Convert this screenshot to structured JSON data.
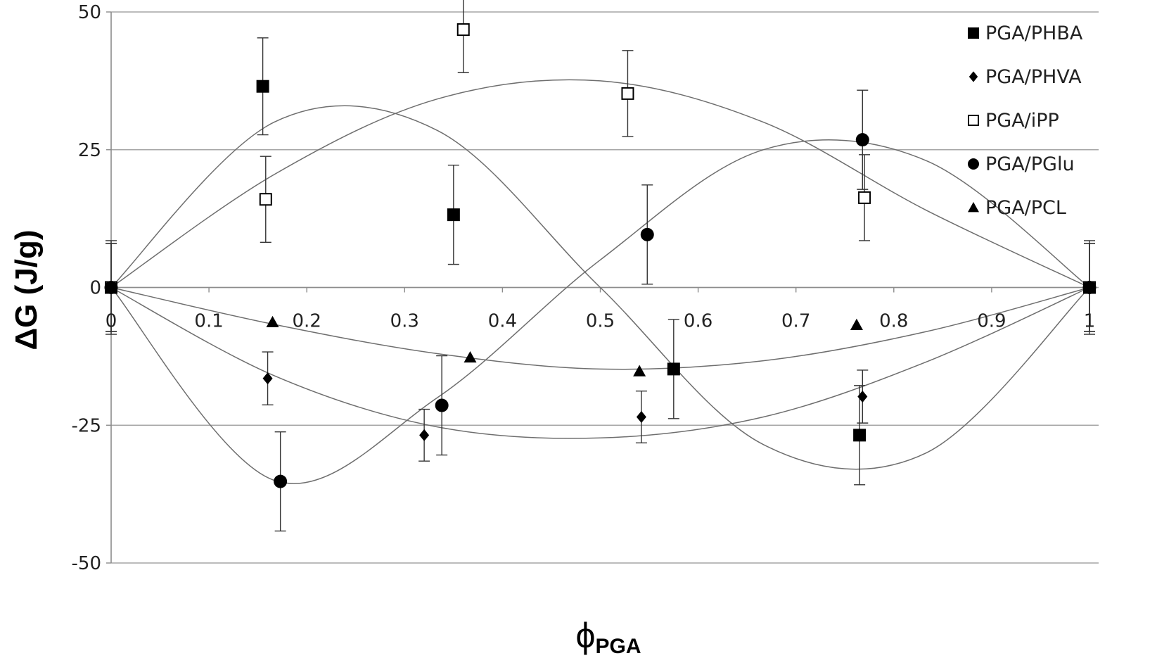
{
  "chart_data": {
    "type": "scatter",
    "xlabel": "ϕ",
    "xlabel_subscript": "PGA",
    "ylabel": "ΔG (J/g)",
    "xlim": [
      0,
      1
    ],
    "ylim": [
      -50,
      50
    ],
    "x_ticks": [
      "0",
      "0.1",
      "0.2",
      "0.3",
      "0.4",
      "0.5",
      "0.6",
      "0.7",
      "0.8",
      "0.9",
      "1"
    ],
    "y_ticks": [
      "50",
      "25",
      "0",
      "-25",
      "-50"
    ],
    "grid": "horizontal",
    "legend_position": "top-right",
    "series": [
      {
        "name": "PGA/PHBA",
        "marker": "filled-square",
        "points": [
          {
            "x": 0,
            "y": 0,
            "err": 8.5
          },
          {
            "x": 0.155,
            "y": 36.5,
            "err": 8.8
          },
          {
            "x": 0.35,
            "y": 13.2,
            "err": 9
          },
          {
            "x": 0.575,
            "y": -14.8,
            "err": 9
          },
          {
            "x": 0.765,
            "y": -26.8,
            "err": 9
          },
          {
            "x": 1,
            "y": 0,
            "err": 8.5
          }
        ],
        "fit": [
          0,
          30,
          28.5,
          0,
          -28.5,
          -30,
          0
        ]
      },
      {
        "name": "PGA/PHVA",
        "marker": "filled-diamond",
        "points": [
          {
            "x": 0,
            "y": 0,
            "err": 8
          },
          {
            "x": 0.16,
            "y": -16.5,
            "err": 4.8
          },
          {
            "x": 0.32,
            "y": -26.8,
            "err": 4.7
          },
          {
            "x": 0.542,
            "y": -23.5,
            "err": 4.7
          },
          {
            "x": 0.768,
            "y": -19.8,
            "err": 4.8
          },
          {
            "x": 1,
            "y": 0,
            "err": 8
          }
        ],
        "fit": [
          0,
          -16,
          -25.3,
          -27.3,
          -23.5,
          -13.5,
          0
        ]
      },
      {
        "name": "PGA/iPP",
        "marker": "open-square",
        "points": [
          {
            "x": 0,
            "y": 0,
            "err": 8
          },
          {
            "x": 0.158,
            "y": 16,
            "err": 7.8
          },
          {
            "x": 0.36,
            "y": 46.8,
            "err": 7.8
          },
          {
            "x": 0.528,
            "y": 35.2,
            "err": 7.8
          },
          {
            "x": 0.77,
            "y": 16.3,
            "err": 7.8
          },
          {
            "x": 1,
            "y": 0,
            "err": 8
          }
        ],
        "fit": [
          0,
          20.5,
          34.2,
          37.5,
          30,
          14,
          0
        ]
      },
      {
        "name": "PGA/PGlu",
        "marker": "filled-circle",
        "points": [
          {
            "x": 0,
            "y": 0,
            "err": 8
          },
          {
            "x": 0.173,
            "y": -35.2,
            "err": 9
          },
          {
            "x": 0.338,
            "y": -21.4,
            "err": 9
          },
          {
            "x": 0.548,
            "y": 9.6,
            "err": 9
          },
          {
            "x": 0.768,
            "y": 26.8,
            "err": 9
          },
          {
            "x": 1,
            "y": 0,
            "err": 8
          }
        ],
        "fit": [
          0,
          -35,
          -20,
          5,
          25,
          23,
          0
        ]
      },
      {
        "name": "PGA/PCL",
        "marker": "filled-triangle",
        "points": [
          {
            "x": 0,
            "y": 0
          },
          {
            "x": 0.165,
            "y": -6.3
          },
          {
            "x": 0.367,
            "y": -12.7
          },
          {
            "x": 0.54,
            "y": -15.2
          },
          {
            "x": 0.762,
            "y": -6.8
          },
          {
            "x": 1,
            "y": 0
          }
        ],
        "fit": [
          0,
          -6.7,
          -12,
          -14.8,
          -13.3,
          -8,
          0
        ]
      }
    ]
  }
}
